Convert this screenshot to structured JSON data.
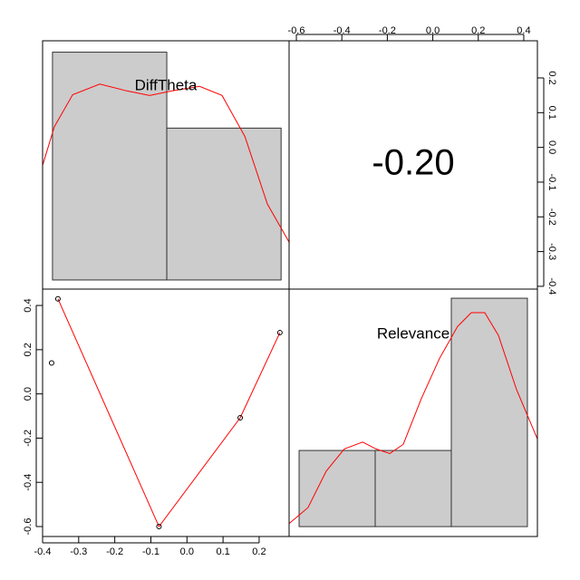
{
  "chart_data": [
    {
      "type": "histogram",
      "title": "DiffTheta",
      "bins": [
        -0.4,
        -0.1,
        0.2
      ],
      "counts": [
        3,
        2
      ],
      "color": "#cccccc",
      "xlim": [
        -0.426,
        0.221
      ],
      "ylim": [
        -0.12,
        3.15
      ],
      "density": {
        "x": [
          -0.426,
          -0.395,
          -0.347,
          -0.276,
          -0.205,
          -0.145,
          -0.086,
          -0.014,
          0.045,
          0.105,
          0.164,
          0.222
        ],
        "y": [
          1.51,
          2.02,
          2.44,
          2.58,
          2.49,
          2.43,
          2.49,
          2.55,
          2.43,
          1.89,
          1.0,
          0.49
        ],
        "color": "#ff0000"
      }
    },
    {
      "type": "correlation",
      "values": [
        -0.2
      ],
      "value_labels": [
        "-0.20"
      ],
      "xlim": [
        -0.632,
        0.46
      ],
      "xticks": [
        -0.6,
        -0.4,
        -0.2,
        {
          "value": 0,
          "label": "0.0"
        },
        0.2,
        0.4
      ],
      "ylim": [
        -0.408,
        0.307
      ],
      "yticks": [
        -0.4,
        -0.3,
        -0.2,
        -0.1,
        {
          "value": 0,
          "label": "0.0"
        },
        0.1,
        0.2
      ]
    },
    {
      "type": "scatter",
      "x": [
        -0.375,
        -0.3575,
        -0.0775,
        0.1475,
        0.2575
      ],
      "y": [
        0.14,
        0.43,
        -0.6,
        -0.108,
        0.277
      ],
      "xlim": [
        -0.4,
        0.283
      ],
      "xticks": [
        -0.4,
        -0.3,
        -0.2,
        -0.1,
        {
          "value": 0,
          "label": "0.0"
        },
        0.1,
        0.2
      ],
      "ylim": [
        -0.645,
        0.474
      ],
      "yticks": [
        -0.6,
        -0.4,
        -0.2,
        {
          "value": 0,
          "label": "0.0"
        },
        0.2,
        0.4
      ],
      "fit": {
        "x": [
          -0.3575,
          -0.0775,
          0.1475,
          0.2575
        ],
        "y": [
          0.43,
          -0.6,
          -0.108,
          0.277
        ],
        "color": "#ff0000"
      }
    },
    {
      "type": "histogram",
      "title": "Relevance",
      "bins": [
        -0.6,
        -0.25,
        0.1,
        0.45
      ],
      "counts": [
        1,
        1,
        3
      ],
      "color": "#cccccc",
      "xlim": [
        -0.646,
        0.496
      ],
      "ylim": [
        -0.13,
        3.12
      ],
      "density": {
        "x": [
          -0.646,
          -0.559,
          -0.475,
          -0.392,
          -0.308,
          -0.246,
          -0.183,
          -0.121,
          -0.038,
          0.046,
          0.129,
          0.192,
          0.254,
          0.317,
          0.4,
          0.496
        ],
        "y": [
          0.04,
          0.25,
          0.73,
          1.02,
          1.11,
          1.02,
          0.96,
          1.08,
          1.68,
          2.21,
          2.63,
          2.81,
          2.81,
          2.51,
          1.8,
          1.15
        ],
        "color": "#ff0000"
      }
    }
  ]
}
